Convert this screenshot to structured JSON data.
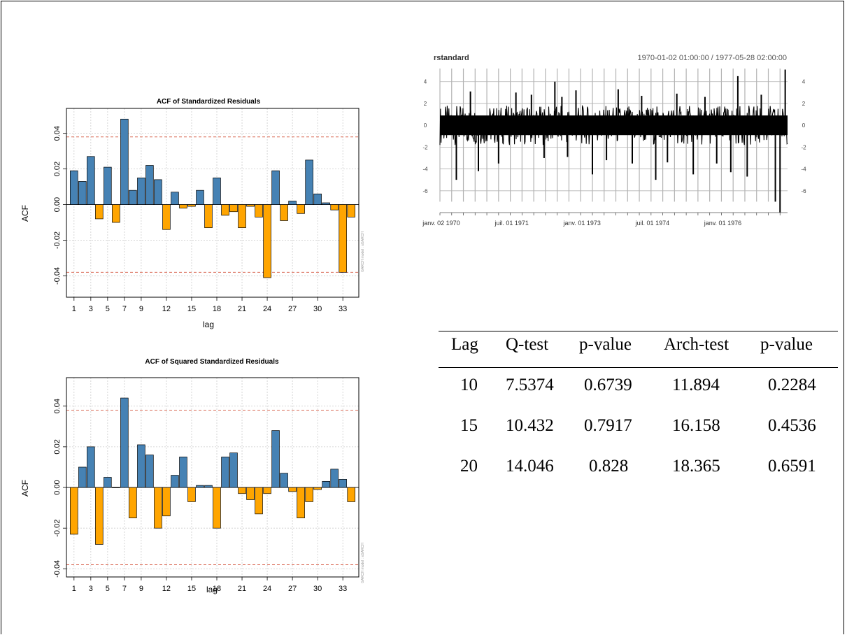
{
  "chart_data": [
    {
      "type": "bar",
      "title": "ACF of Standardized Residuals",
      "xlabel": "lag",
      "ylabel": "ACF",
      "side_note": "GARCH model : sGARCH",
      "lags": [
        1,
        2,
        3,
        4,
        5,
        6,
        7,
        8,
        9,
        10,
        11,
        12,
        13,
        14,
        15,
        16,
        17,
        18,
        19,
        20,
        21,
        22,
        23,
        24,
        25,
        26,
        27,
        28,
        29,
        30,
        31,
        32,
        33,
        34
      ],
      "values": [
        0.019,
        0.013,
        0.027,
        -0.008,
        0.021,
        -0.01,
        0.048,
        0.008,
        0.015,
        0.022,
        0.014,
        -0.014,
        0.007,
        -0.002,
        -0.001,
        0.008,
        -0.013,
        0.015,
        -0.006,
        -0.004,
        -0.013,
        -0.001,
        -0.007,
        -0.041,
        0.019,
        -0.009,
        0.002,
        -0.005,
        0.025,
        0.006,
        0.001,
        -0.003,
        -0.038,
        -0.007
      ],
      "x_tick_labels": [
        "1",
        "3",
        "5",
        "7",
        "9",
        "12",
        "15",
        "18",
        "21",
        "24",
        "27",
        "30",
        "33"
      ],
      "x_tick_positions": [
        1,
        3,
        5,
        7,
        9,
        12,
        15,
        18,
        21,
        24,
        27,
        30,
        33
      ],
      "y_ticks": [
        0.04,
        0.02,
        0.0,
        -0.02,
        -0.04
      ],
      "y_tick_labels": [
        "0.04",
        "0.02",
        "0.00",
        "-0.02",
        "-0.04"
      ],
      "ylim": [
        -0.052,
        0.054
      ],
      "conf_bound": 0.038,
      "colors": {
        "positive": "#4682b4",
        "negative": "#ffa500",
        "bound": "#d96a55"
      }
    },
    {
      "type": "bar",
      "title": "ACF of Squared Standardized Residuals",
      "xlabel": "lag",
      "ylabel": "ACF",
      "side_note": "GARCH model : sGARCH",
      "lags": [
        1,
        2,
        3,
        4,
        5,
        6,
        7,
        8,
        9,
        10,
        11,
        12,
        13,
        14,
        15,
        16,
        17,
        18,
        19,
        20,
        21,
        22,
        23,
        24,
        25,
        26,
        27,
        28,
        29,
        30,
        31,
        32,
        33,
        34
      ],
      "values": [
        -0.023,
        0.01,
        0.02,
        -0.028,
        0.005,
        0.0,
        0.044,
        -0.015,
        0.021,
        0.016,
        -0.02,
        -0.014,
        0.006,
        0.015,
        -0.007,
        0.001,
        0.001,
        -0.02,
        0.015,
        0.017,
        -0.003,
        -0.006,
        -0.013,
        -0.003,
        0.028,
        0.007,
        -0.002,
        -0.015,
        -0.007,
        -0.001,
        0.003,
        0.009,
        0.004,
        -0.007
      ],
      "x_tick_labels": [
        "1",
        "3",
        "5",
        "7",
        "9",
        "12",
        "15",
        "18",
        "21",
        "24",
        "27",
        "30",
        "33"
      ],
      "x_tick_positions": [
        1,
        3,
        5,
        7,
        9,
        12,
        15,
        18,
        21,
        24,
        27,
        30,
        33
      ],
      "y_ticks": [
        0.04,
        0.02,
        0.0,
        -0.02,
        -0.04
      ],
      "y_tick_labels": [
        "0.04",
        "0.02",
        "0.00",
        "-0.02",
        "-0.04"
      ],
      "ylim": [
        -0.044,
        0.054
      ],
      "conf_bound": 0.038,
      "colors": {
        "positive": "#4682b4",
        "negative": "#ffa500",
        "bound": "#d96a55"
      }
    },
    {
      "type": "line",
      "title": "rstandard",
      "range_label": "1970-01-02 01:00:00 / 1977-05-28 02:00:00",
      "x_tick_labels": [
        "janv. 02 1970",
        "juil. 01 1971",
        "janv. 01 1973",
        "juil. 01 1974",
        "janv. 01 1976"
      ],
      "x_tick_years": [
        1970.0,
        1971.5,
        1973.0,
        1974.5,
        1976.0
      ],
      "x_range": [
        1970.0,
        1977.41
      ],
      "y_ticks": [
        4,
        2,
        0,
        -2,
        -4,
        -6
      ],
      "y_tick_labels": [
        "4",
        "2",
        "0",
        "-2",
        "-4",
        "-6"
      ],
      "ylim": [
        -8,
        5.2
      ],
      "series_band": [
        -1.8,
        1.8
      ],
      "spikes": [
        {
          "x": 1970.35,
          "y": -5.0
        },
        {
          "x": 1970.65,
          "y": 3.1
        },
        {
          "x": 1970.82,
          "y": -4.2
        },
        {
          "x": 1971.25,
          "y": -3.5
        },
        {
          "x": 1971.62,
          "y": 3.0
        },
        {
          "x": 1971.95,
          "y": 2.8
        },
        {
          "x": 1972.22,
          "y": -3.0
        },
        {
          "x": 1972.45,
          "y": 4.0
        },
        {
          "x": 1972.6,
          "y": 2.6
        },
        {
          "x": 1972.72,
          "y": -2.9
        },
        {
          "x": 1972.9,
          "y": 3.2
        },
        {
          "x": 1973.25,
          "y": -4.5
        },
        {
          "x": 1973.55,
          "y": -3.2
        },
        {
          "x": 1973.8,
          "y": 3.3
        },
        {
          "x": 1974.1,
          "y": -3.5
        },
        {
          "x": 1974.3,
          "y": 2.7
        },
        {
          "x": 1974.6,
          "y": -5.0
        },
        {
          "x": 1974.85,
          "y": -3.4
        },
        {
          "x": 1975.05,
          "y": 2.9
        },
        {
          "x": 1975.4,
          "y": -4.5
        },
        {
          "x": 1975.65,
          "y": 2.6
        },
        {
          "x": 1975.9,
          "y": -3.5
        },
        {
          "x": 1976.2,
          "y": -4.3
        },
        {
          "x": 1976.35,
          "y": 4.5
        },
        {
          "x": 1976.55,
          "y": -4.7
        },
        {
          "x": 1976.85,
          "y": 2.8
        },
        {
          "x": 1977.15,
          "y": -7.0
        },
        {
          "x": 1977.25,
          "y": -8.0
        },
        {
          "x": 1977.36,
          "y": 5.1
        }
      ],
      "colors": {
        "line": "#000000",
        "grid": "#b3b3b3"
      }
    }
  ],
  "table": {
    "headers": [
      "Lag",
      "Q-test",
      "p-value",
      "Arch-test",
      "p-value"
    ],
    "rows": [
      [
        "10",
        "7.5374",
        "0.6739",
        "11.894",
        "0.2284"
      ],
      [
        "15",
        "10.432",
        "0.7917",
        "16.158",
        "0.4536"
      ],
      [
        "20",
        "14.046",
        "0.828",
        "18.365",
        "0.6591"
      ]
    ]
  }
}
